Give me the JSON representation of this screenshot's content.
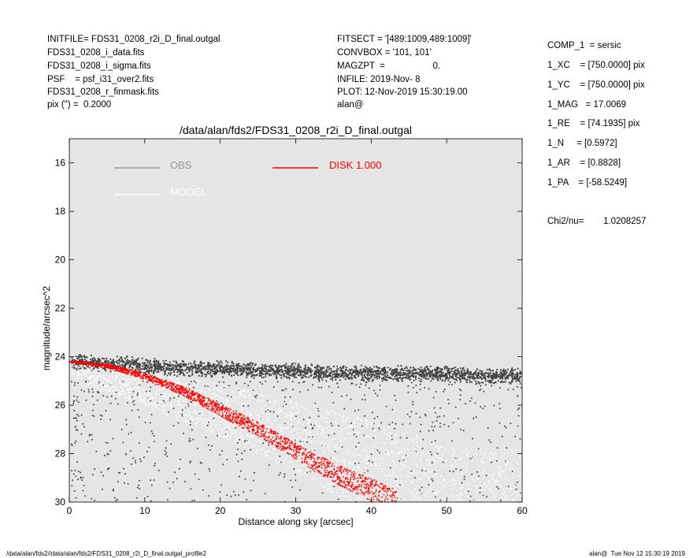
{
  "header_left": [
    "INITFILE= FDS31_0208_r2i_D_final.outgal",
    "FDS31_0208_i_data.fits",
    "FDS31_0208_i_sigma.fits",
    "PSF    = psf_i31_over2.fits",
    "FDS31_0208_r_finmask.fits",
    "pix (\") =  0.2000"
  ],
  "header_mid": [
    "FITSECT = '[489:1009,489:1009]'",
    "CONVBOX = '101, 101'",
    "MAGZPT  =                   0.",
    "INFILE: 2019-Nov- 8",
    "PLOT: 12-Nov-2019 15:30:19.00",
    "alan@"
  ],
  "params": [
    "COMP_1  = sersic",
    "1_XC    = [750.0000] pix",
    "1_YC    = [750.0000] pix",
    "1_MAG   = 17.0069",
    "1_RE    = [74.1935] pix",
    "1_N     = [0.5972]",
    "1_AR    = [0.8828]",
    "1_PA    = [-58.5249]"
  ],
  "chi2": {
    "label": "Chi2/nu=",
    "value": "1.0208257"
  },
  "footer": {
    "left": "/data/alan/fds2//data/alan/fds2/FDS31_0208_r2i_D_final.outgal_profile2",
    "right": "alan@  Tue Nov 12 15:30:19 2019"
  },
  "chart_data": {
    "type": "scatter",
    "title": "/data/alan/fds2/FDS31_0208_r2i_D_final.outgal",
    "xlabel": "Distance along sky [arcsec]",
    "ylabel": "magnitude/arcsec^2",
    "xlim": [
      0,
      60
    ],
    "ylim": [
      30,
      15
    ],
    "y_inverted": true,
    "xticks": [
      0,
      10,
      20,
      30,
      40,
      50,
      60
    ],
    "yticks": [
      16,
      18,
      20,
      22,
      24,
      26,
      28,
      30
    ],
    "background": "#e5e5e5",
    "legend": {
      "placement": "top",
      "entries": [
        {
          "name": "OBS",
          "color": "#999999"
        },
        {
          "name": "MODEL",
          "color": "#ffffff"
        },
        {
          "name": "DISK  1.000",
          "color": "#ff0000"
        }
      ]
    },
    "series": [
      {
        "name": "OBS",
        "color": "#444444",
        "x": [
          0.5,
          2,
          4,
          6,
          8,
          10,
          15,
          20,
          25,
          30,
          35,
          40,
          45,
          50,
          55,
          60
        ],
        "y": [
          24.3,
          24.2,
          24.3,
          24.3,
          24.3,
          24.4,
          24.5,
          24.5,
          24.6,
          24.6,
          24.7,
          24.7,
          24.7,
          24.7,
          24.8,
          24.8
        ],
        "scatter_low_range": [
          25.0,
          30.0
        ]
      },
      {
        "name": "MODEL",
        "color": "#ffffff",
        "x": [
          0,
          10,
          20,
          30,
          40,
          50,
          60
        ],
        "y": [
          24.5,
          25.2,
          26.0,
          27.0,
          28.2,
          29.5,
          30.0
        ]
      },
      {
        "name": "DISK  1.000",
        "color": "#ff0000",
        "x": [
          0,
          5,
          10,
          15,
          20,
          25,
          30,
          35,
          40,
          43.5
        ],
        "y": [
          24.2,
          24.38,
          24.8,
          25.4,
          26.2,
          27.0,
          27.9,
          28.8,
          29.5,
          30.0
        ]
      }
    ]
  }
}
